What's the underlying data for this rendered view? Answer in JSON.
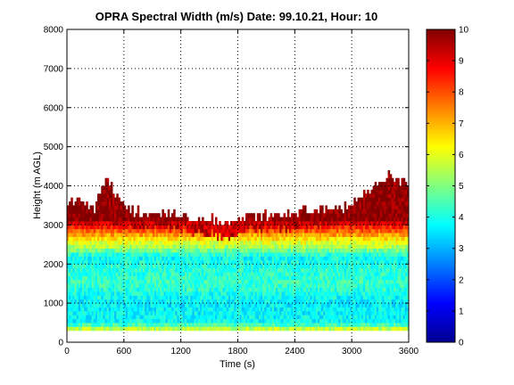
{
  "chart_data": {
    "type": "heatmap",
    "title": "OPRA Spectral Width (m/s)  Date: 99.10.21, Hour: 10",
    "xlabel": "Time (s)",
    "ylabel": "Height (m AGL)",
    "xlim": [
      0,
      3600
    ],
    "ylim": [
      0,
      8000
    ],
    "xticks": [
      0,
      600,
      1200,
      1800,
      2400,
      3000,
      3600
    ],
    "xtick_labels": [
      "0",
      "600",
      "1200",
      "1800",
      "2400",
      "3000",
      "3600"
    ],
    "yticks": [
      0,
      1000,
      2000,
      3000,
      4000,
      5000,
      6000,
      7000,
      8000
    ],
    "ytick_labels": [
      "0",
      "1000",
      "2000",
      "3000",
      "4000",
      "5000",
      "6000",
      "7000",
      "8000"
    ],
    "grid": true,
    "colormap": "jet",
    "colorbar": {
      "range": [
        0,
        10
      ],
      "ticks": [
        0,
        1,
        2,
        3,
        4,
        5,
        6,
        7,
        8,
        9,
        10
      ],
      "tick_labels": [
        "0",
        "1",
        "2",
        "3",
        "4",
        "5",
        "6",
        "7",
        "8",
        "9",
        "10"
      ]
    },
    "data_extent": {
      "height_min_m": 300,
      "description_profile": [
        {
          "height_m": 300,
          "value": 6.2
        },
        {
          "height_m": 500,
          "value": 3.8
        },
        {
          "height_m": 1000,
          "value": 3.6
        },
        {
          "height_m": 1500,
          "value": 4.3
        },
        {
          "height_m": 2000,
          "value": 4.0
        },
        {
          "height_m": 2200,
          "value": 3.8
        },
        {
          "height_m": 2400,
          "value": 5.2
        },
        {
          "height_m": 2600,
          "value": 6.2
        },
        {
          "height_m": 2800,
          "value": 7.5
        },
        {
          "height_m": 3000,
          "value": 8.8
        },
        {
          "height_m": 3150,
          "value": 9.9
        }
      ],
      "top_height_by_time": [
        {
          "time_s": 0,
          "top_m": 3600
        },
        {
          "time_s": 300,
          "top_m": 3400
        },
        {
          "time_s": 400,
          "top_m": 4100
        },
        {
          "time_s": 550,
          "top_m": 3700
        },
        {
          "time_s": 700,
          "top_m": 3300
        },
        {
          "time_s": 1000,
          "top_m": 3300
        },
        {
          "time_s": 1200,
          "top_m": 3200
        },
        {
          "time_s": 1500,
          "top_m": 3100
        },
        {
          "time_s": 1700,
          "top_m": 3000
        },
        {
          "time_s": 1900,
          "top_m": 3200
        },
        {
          "time_s": 2300,
          "top_m": 3200
        },
        {
          "time_s": 2500,
          "top_m": 3300
        },
        {
          "time_s": 2900,
          "top_m": 3400
        },
        {
          "time_s": 3200,
          "top_m": 3900
        },
        {
          "time_s": 3400,
          "top_m": 4200
        },
        {
          "time_s": 3600,
          "top_m": 4000
        }
      ]
    }
  }
}
